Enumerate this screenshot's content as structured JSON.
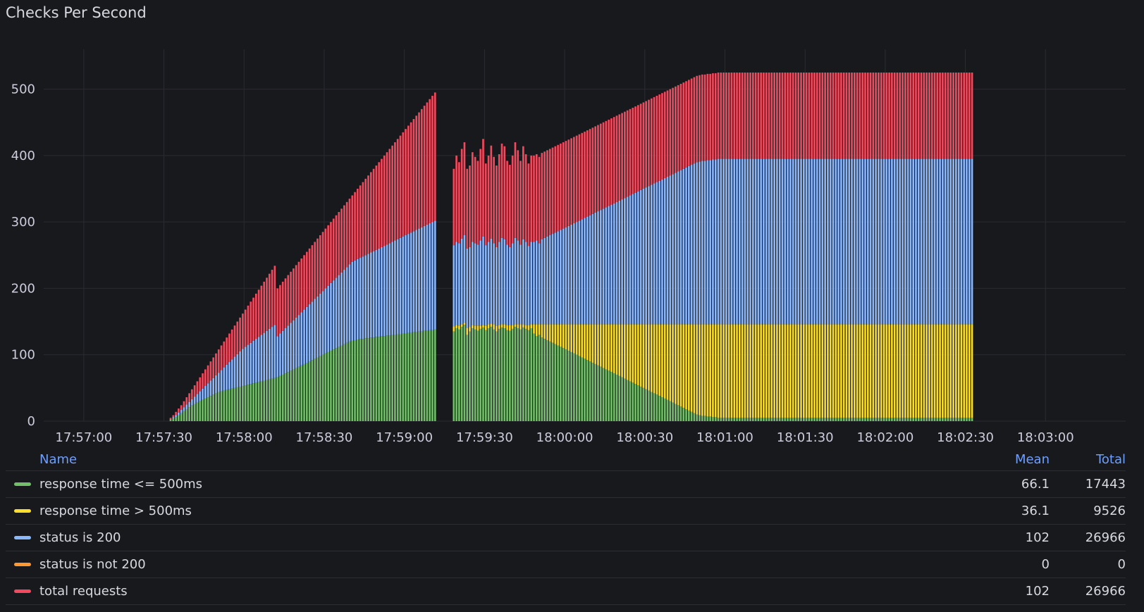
{
  "panel": {
    "title": "Checks Per Second"
  },
  "legend": {
    "columns": {
      "name": "Name",
      "mean": "Mean",
      "total": "Total"
    },
    "items": [
      {
        "name": "response time <= 500ms",
        "color": "#73bf69",
        "mean": "66.1",
        "total": "17443"
      },
      {
        "name": "response time > 500ms",
        "color": "#fade2a",
        "mean": "36.1",
        "total": "9526"
      },
      {
        "name": "status is 200",
        "color": "#8ab8ff",
        "mean": "102",
        "total": "26966"
      },
      {
        "name": "status is not 200",
        "color": "#ff9830",
        "mean": "0",
        "total": "0"
      },
      {
        "name": "total requests",
        "color": "#f2495c",
        "mean": "102",
        "total": "26966"
      }
    ]
  },
  "chart_data": {
    "type": "bar",
    "stacked": true,
    "title": "Checks Per Second",
    "xlabel": "",
    "ylabel": "",
    "ylim": [
      0,
      560
    ],
    "yticks": [
      0,
      100,
      200,
      300,
      400,
      500
    ],
    "xlim": [
      "17:56:45",
      "18:03:30"
    ],
    "xticks": [
      "17:57:00",
      "17:57:30",
      "17:58:00",
      "17:58:30",
      "17:59:00",
      "17:59:30",
      "18:00:00",
      "18:00:30",
      "18:01:00",
      "18:01:30",
      "18:02:00",
      "18:02:30",
      "18:03:00"
    ],
    "grid": true,
    "legend_position": "bottom",
    "series_note_text": "",
    "segments": [
      {
        "start": "17:57:32",
        "end": "17:58:12",
        "good": [
          2,
          4,
          6,
          9,
          12,
          15,
          18,
          21,
          24,
          26,
          28,
          30,
          32,
          34,
          36,
          38,
          40,
          42,
          44,
          45,
          46,
          47,
          48,
          49,
          50,
          51,
          52,
          53,
          54,
          55,
          56,
          57,
          58,
          59,
          60,
          61,
          62,
          63,
          64,
          65
        ],
        "slow": [
          0,
          0,
          0,
          0,
          0,
          0,
          0,
          0,
          0,
          0,
          0,
          0,
          0,
          0,
          0,
          0,
          0,
          0,
          0,
          0,
          0,
          0,
          0,
          0,
          0,
          0,
          0,
          0,
          0,
          0,
          0,
          0,
          0,
          0,
          0,
          0,
          0,
          0,
          0,
          0
        ],
        "ok200": [
          3,
          6,
          9,
          13,
          17,
          21,
          25,
          29,
          33,
          37,
          41,
          45,
          49,
          53,
          57,
          61,
          65,
          69,
          73,
          77,
          81,
          85,
          89,
          93,
          97,
          101,
          105,
          109,
          112,
          115,
          118,
          121,
          124,
          127,
          130,
          133,
          136,
          139,
          142,
          145
        ],
        "total": [
          5,
          9,
          14,
          19,
          24,
          30,
          36,
          42,
          48,
          54,
          60,
          66,
          72,
          78,
          84,
          90,
          96,
          102,
          108,
          114,
          120,
          126,
          132,
          138,
          144,
          150,
          156,
          162,
          168,
          174,
          180,
          186,
          192,
          198,
          204,
          210,
          216,
          222,
          228,
          234
        ]
      },
      {
        "start": "17:58:12",
        "end": "17:59:12",
        "good": [
          66,
          68,
          70,
          72,
          74,
          76,
          78,
          80,
          82,
          84,
          86,
          88,
          90,
          92,
          94,
          96,
          98,
          100,
          102,
          104,
          106,
          108,
          110,
          112,
          114,
          116,
          118,
          120,
          121,
          122,
          123,
          124,
          124,
          125,
          125,
          126,
          126,
          127,
          127,
          128,
          128,
          129,
          129,
          130,
          130,
          131,
          131,
          132,
          132,
          133,
          133,
          134,
          134,
          135,
          135,
          136,
          136,
          137,
          137,
          138
        ],
        "slow": [
          0,
          0,
          0,
          0,
          0,
          0,
          0,
          0,
          0,
          0,
          0,
          0,
          0,
          0,
          0,
          0,
          0,
          0,
          0,
          0,
          0,
          0,
          0,
          0,
          0,
          0,
          0,
          0,
          0,
          0,
          0,
          0,
          0,
          0,
          0,
          0,
          0,
          0,
          0,
          0,
          0,
          0,
          0,
          0,
          0,
          0,
          0,
          0,
          0,
          0,
          0,
          0,
          0,
          0,
          0,
          0,
          0,
          0,
          0,
          0
        ],
        "ok200": [
          128,
          132,
          136,
          140,
          144,
          148,
          152,
          156,
          160,
          164,
          168,
          172,
          176,
          180,
          184,
          188,
          192,
          196,
          200,
          204,
          208,
          212,
          216,
          220,
          224,
          228,
          232,
          236,
          240,
          242,
          244,
          246,
          248,
          250,
          252,
          254,
          256,
          258,
          260,
          262,
          264,
          266,
          268,
          270,
          272,
          274,
          276,
          278,
          280,
          282,
          284,
          286,
          288,
          290,
          292,
          294,
          296,
          298,
          300,
          302
        ],
        "total": [
          200,
          205,
          210,
          215,
          220,
          225,
          230,
          235,
          240,
          245,
          250,
          255,
          260,
          265,
          270,
          275,
          280,
          285,
          290,
          295,
          300,
          305,
          310,
          315,
          320,
          325,
          330,
          335,
          340,
          345,
          350,
          355,
          360,
          365,
          370,
          375,
          380,
          385,
          390,
          395,
          400,
          405,
          410,
          415,
          420,
          425,
          430,
          435,
          440,
          445,
          450,
          455,
          460,
          465,
          470,
          475,
          480,
          485,
          490,
          495
        ]
      },
      {
        "start": "17:59:18",
        "end": "18:02:33",
        "good": [
          135,
          140,
          138,
          142,
          145,
          130,
          135,
          140,
          138,
          136,
          139,
          141,
          137,
          140,
          142,
          138,
          135,
          139,
          141,
          140,
          137,
          136,
          139,
          142,
          140,
          138,
          141,
          139,
          137,
          140,
          132,
          128,
          130,
          126,
          124,
          122,
          120,
          118,
          116,
          114,
          112,
          110,
          108,
          106,
          104,
          102,
          100,
          98,
          96,
          94,
          92,
          90,
          88,
          86,
          84,
          82,
          80,
          78,
          76,
          74,
          72,
          70,
          68,
          66,
          64,
          62,
          60,
          58,
          56,
          54,
          52,
          50,
          48,
          46,
          44,
          42,
          40,
          38,
          36,
          34,
          32,
          30,
          28,
          26,
          24,
          22,
          20,
          18,
          16,
          14,
          12,
          10,
          9,
          8,
          8,
          7,
          7,
          6,
          6,
          5,
          5,
          5,
          5,
          5,
          5,
          5,
          5,
          5,
          5,
          5,
          5,
          5,
          5,
          5,
          5,
          5,
          5,
          5,
          5,
          5,
          5,
          5,
          5,
          5,
          5,
          5,
          5,
          5,
          5,
          5,
          5,
          5,
          5,
          5,
          5,
          5,
          5,
          5,
          5,
          5,
          5,
          5,
          5,
          5,
          5,
          5,
          5,
          5,
          5,
          5,
          5,
          5,
          5,
          5,
          5,
          5,
          5,
          5,
          5,
          5,
          5,
          5,
          5,
          5,
          5,
          5,
          5,
          5,
          5,
          5,
          5,
          5,
          5,
          5,
          5,
          5,
          5,
          5,
          5,
          5,
          5,
          5,
          5,
          5,
          5,
          5,
          5,
          5,
          5,
          5,
          5,
          5,
          5,
          5,
          5
        ],
        "slow": [
          8,
          5,
          6,
          4,
          3,
          10,
          7,
          5,
          6,
          8,
          5,
          4,
          7,
          6,
          5,
          8,
          9,
          6,
          5,
          6,
          8,
          9,
          6,
          4,
          6,
          8,
          5,
          6,
          8,
          6,
          14,
          18,
          16,
          20,
          22,
          24,
          26,
          28,
          30,
          32,
          34,
          36,
          38,
          40,
          42,
          44,
          46,
          48,
          50,
          52,
          54,
          56,
          58,
          60,
          62,
          64,
          66,
          68,
          70,
          72,
          74,
          76,
          78,
          80,
          82,
          84,
          86,
          88,
          90,
          92,
          94,
          96,
          98,
          100,
          102,
          104,
          106,
          108,
          110,
          112,
          114,
          116,
          118,
          120,
          122,
          124,
          126,
          128,
          130,
          132,
          134,
          136,
          137,
          138,
          138,
          139,
          139,
          140,
          140,
          141,
          141,
          141,
          141,
          141,
          141,
          141,
          141,
          141,
          141,
          141,
          141,
          141,
          141,
          141,
          141,
          141,
          141,
          141,
          141,
          141,
          141,
          141,
          141,
          141,
          141,
          141,
          141,
          141,
          141,
          141,
          141,
          141,
          141,
          141,
          141,
          141,
          141,
          141,
          141,
          141,
          141,
          141,
          141,
          141,
          141,
          141,
          141,
          141,
          141,
          141,
          141,
          141,
          141,
          141,
          141,
          141,
          141,
          141,
          141,
          141,
          141,
          141,
          141,
          141,
          141,
          141,
          141,
          141,
          141,
          141,
          141,
          141,
          141,
          141,
          141,
          141,
          141,
          141,
          141,
          141,
          141,
          141,
          141,
          141,
          141,
          141,
          141,
          141,
          141,
          141,
          141,
          141,
          141,
          141,
          141
        ],
        "ok200": [
          265,
          270,
          268,
          275,
          280,
          260,
          262,
          270,
          268,
          266,
          272,
          278,
          265,
          270,
          275,
          268,
          262,
          270,
          276,
          274,
          266,
          262,
          268,
          276,
          272,
          266,
          274,
          270,
          264,
          270,
          270,
          272,
          268,
          274,
          276,
          278,
          280,
          282,
          284,
          286,
          288,
          290,
          292,
          294,
          296,
          298,
          300,
          302,
          304,
          306,
          308,
          310,
          312,
          314,
          316,
          318,
          320,
          322,
          324,
          326,
          328,
          330,
          332,
          334,
          336,
          338,
          340,
          342,
          344,
          346,
          348,
          350,
          352,
          354,
          356,
          358,
          360,
          362,
          364,
          366,
          368,
          370,
          372,
          374,
          376,
          378,
          380,
          382,
          384,
          386,
          388,
          390,
          391,
          392,
          392,
          393,
          393,
          394,
          394,
          395,
          395,
          395,
          395,
          395,
          395,
          395,
          395,
          395,
          395,
          395,
          395,
          395,
          395,
          395,
          395,
          395,
          395,
          395,
          395,
          395,
          395,
          395,
          395,
          395,
          395,
          395,
          395,
          395,
          395,
          395,
          395,
          395,
          395,
          395,
          395,
          395,
          395,
          395,
          395,
          395,
          395,
          395,
          395,
          395,
          395,
          395,
          395,
          395,
          395,
          395,
          395,
          395,
          395,
          395,
          395,
          395,
          395,
          395,
          395,
          395,
          395,
          395,
          395,
          395,
          395,
          395,
          395,
          395,
          395,
          395,
          395,
          395,
          395,
          395,
          395,
          395,
          395,
          395,
          395,
          395,
          395,
          395,
          395,
          395,
          395,
          395,
          395,
          395,
          395,
          395,
          395,
          395,
          395,
          395,
          395
        ],
        "total": [
          380,
          400,
          390,
          410,
          420,
          380,
          385,
          405,
          398,
          392,
          410,
          425,
          388,
          400,
          415,
          398,
          385,
          402,
          418,
          414,
          392,
          386,
          400,
          420,
          408,
          392,
          414,
          402,
          388,
          400,
          400,
          402,
          398,
          404,
          406,
          408,
          410,
          412,
          414,
          416,
          418,
          420,
          422,
          424,
          426,
          428,
          430,
          432,
          434,
          436,
          438,
          440,
          442,
          444,
          446,
          448,
          450,
          452,
          454,
          456,
          458,
          460,
          462,
          464,
          466,
          468,
          470,
          472,
          474,
          476,
          478,
          480,
          482,
          484,
          486,
          488,
          490,
          492,
          494,
          496,
          498,
          500,
          502,
          504,
          506,
          508,
          510,
          512,
          514,
          516,
          518,
          520,
          521,
          522,
          522,
          523,
          523,
          524,
          524,
          525,
          525,
          525,
          525,
          525,
          525,
          525,
          525,
          525,
          525,
          525,
          525,
          525,
          525,
          525,
          525,
          525,
          525,
          525,
          525,
          525,
          525,
          525,
          525,
          525,
          525,
          525,
          525,
          525,
          525,
          525,
          525,
          525,
          525,
          525,
          525,
          525,
          525,
          525,
          525,
          525,
          525,
          525,
          525,
          525,
          525,
          525,
          525,
          525,
          525,
          525,
          525,
          525,
          525,
          525,
          525,
          525,
          525,
          525,
          525,
          525,
          525,
          525,
          525,
          525,
          525,
          525,
          525,
          525,
          525,
          525,
          525,
          525,
          525,
          525,
          525,
          525,
          525,
          525,
          525,
          525,
          525,
          525,
          525,
          525,
          525,
          525,
          525,
          525,
          525,
          525,
          525,
          525,
          525,
          525,
          525
        ]
      }
    ]
  }
}
